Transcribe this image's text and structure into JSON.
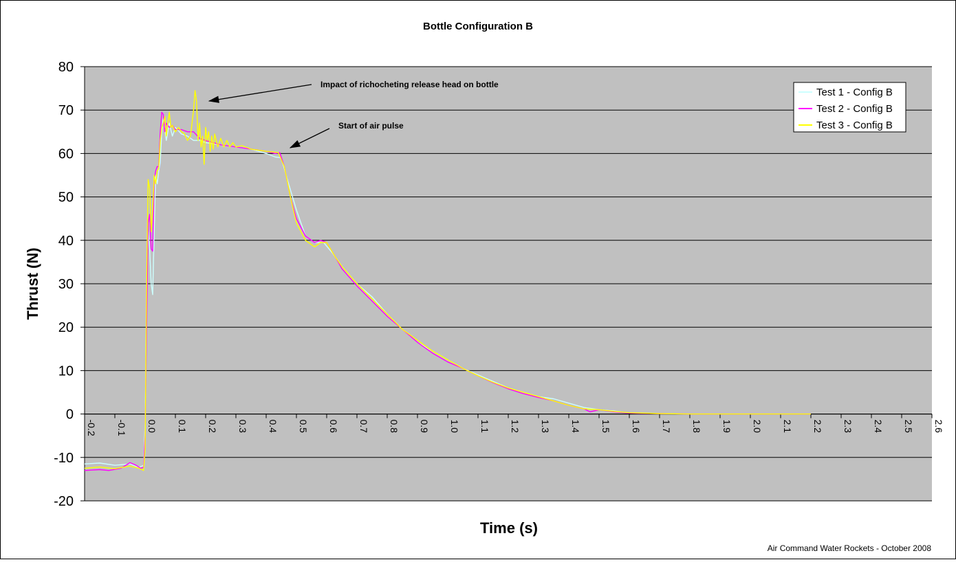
{
  "chart_data": {
    "type": "line",
    "title": "Bottle Configuration B",
    "xlabel": "Time (s)",
    "ylabel": "Thrust (N)",
    "footer": "Air Command Water Rockets - October 2008",
    "xlim": [
      -0.2,
      2.6
    ],
    "ylim": [
      -20,
      80
    ],
    "x_ticks": [
      "-0.2",
      "-0.1",
      "0.0",
      "0.1",
      "0.2",
      "0.3",
      "0.4",
      "0.5",
      "0.6",
      "0.7",
      "0.8",
      "0.9",
      "1.0",
      "1.1",
      "1.2",
      "1.3",
      "1.4",
      "1.5",
      "1.6",
      "1.7",
      "1.8",
      "1.9",
      "2.0",
      "2.1",
      "2.2",
      "2.3",
      "2.4",
      "2.5",
      "2.6"
    ],
    "y_ticks": [
      "80",
      "70",
      "60",
      "50",
      "40",
      "30",
      "20",
      "10",
      "0",
      "-10",
      "-20"
    ],
    "grid": true,
    "legend_position": "top-right",
    "plot_background": "#C0C0C0",
    "annotations": [
      {
        "text": "Impact of richocheting release head on bottle",
        "points_to": [
          0.21,
          72
        ]
      },
      {
        "text": "Start of air pulse",
        "points_to": [
          0.47,
          61
        ]
      }
    ],
    "series": [
      {
        "name": "Test 1 - Config B",
        "color": "#CCFFFF",
        "points": [
          [
            -0.2,
            -11.5
          ],
          [
            -0.15,
            -11.3
          ],
          [
            -0.1,
            -11.8
          ],
          [
            -0.05,
            -11.5
          ],
          [
            -0.02,
            -12.3
          ],
          [
            -0.005,
            -11.8
          ],
          [
            0.0,
            -2
          ],
          [
            0.005,
            25
          ],
          [
            0.01,
            42
          ],
          [
            0.015,
            38
          ],
          [
            0.02,
            30
          ],
          [
            0.025,
            27.5
          ],
          [
            0.03,
            42
          ],
          [
            0.035,
            55
          ],
          [
            0.04,
            53
          ],
          [
            0.045,
            56
          ],
          [
            0.05,
            58
          ],
          [
            0.055,
            65
          ],
          [
            0.06,
            68
          ],
          [
            0.065,
            66
          ],
          [
            0.07,
            63
          ],
          [
            0.08,
            67
          ],
          [
            0.09,
            64
          ],
          [
            0.1,
            66
          ],
          [
            0.12,
            64.5
          ],
          [
            0.14,
            64
          ],
          [
            0.16,
            63
          ],
          [
            0.18,
            63
          ],
          [
            0.2,
            62.5
          ],
          [
            0.25,
            62
          ],
          [
            0.3,
            61.5
          ],
          [
            0.35,
            61
          ],
          [
            0.4,
            60
          ],
          [
            0.43,
            59.2
          ],
          [
            0.45,
            59
          ],
          [
            0.47,
            54
          ],
          [
            0.5,
            47
          ],
          [
            0.53,
            41
          ],
          [
            0.56,
            39.5
          ],
          [
            0.59,
            39.5
          ],
          [
            0.62,
            37
          ],
          [
            0.65,
            34
          ],
          [
            0.7,
            30
          ],
          [
            0.75,
            27
          ],
          [
            0.8,
            23
          ],
          [
            0.85,
            19.5
          ],
          [
            0.9,
            16.5
          ],
          [
            0.95,
            14.5
          ],
          [
            1.0,
            12.5
          ],
          [
            1.05,
            10.5
          ],
          [
            1.1,
            9
          ],
          [
            1.15,
            7.5
          ],
          [
            1.2,
            6
          ],
          [
            1.25,
            5
          ],
          [
            1.3,
            4
          ],
          [
            1.35,
            3.5
          ],
          [
            1.4,
            2.5
          ],
          [
            1.45,
            1.5
          ],
          [
            1.5,
            1
          ],
          [
            1.55,
            0.7
          ],
          [
            1.6,
            0.2
          ],
          [
            1.7,
            0.1
          ],
          [
            1.8,
            0
          ],
          [
            1.9,
            0
          ],
          [
            2.0,
            0
          ],
          [
            2.1,
            0
          ],
          [
            2.2,
            0
          ]
        ]
      },
      {
        "name": "Test 2 - Config B",
        "color": "#FF00FF",
        "points": [
          [
            -0.2,
            -13
          ],
          [
            -0.15,
            -12.8
          ],
          [
            -0.12,
            -13
          ],
          [
            -0.08,
            -12.5
          ],
          [
            -0.05,
            -11.2
          ],
          [
            -0.03,
            -11.8
          ],
          [
            -0.015,
            -12.5
          ],
          [
            -0.005,
            -12.3
          ],
          [
            0.0,
            -5
          ],
          [
            0.005,
            20
          ],
          [
            0.01,
            44
          ],
          [
            0.015,
            46
          ],
          [
            0.02,
            38
          ],
          [
            0.025,
            37.5
          ],
          [
            0.03,
            54
          ],
          [
            0.035,
            56
          ],
          [
            0.04,
            57
          ],
          [
            0.045,
            57
          ],
          [
            0.05,
            65
          ],
          [
            0.055,
            69.5
          ],
          [
            0.06,
            69
          ],
          [
            0.065,
            65
          ],
          [
            0.07,
            67
          ],
          [
            0.08,
            66
          ],
          [
            0.09,
            66.5
          ],
          [
            0.1,
            65.5
          ],
          [
            0.12,
            65.5
          ],
          [
            0.14,
            65
          ],
          [
            0.16,
            65
          ],
          [
            0.18,
            63.5
          ],
          [
            0.2,
            63
          ],
          [
            0.25,
            62
          ],
          [
            0.3,
            61.5
          ],
          [
            0.35,
            61
          ],
          [
            0.4,
            60.5
          ],
          [
            0.43,
            60
          ],
          [
            0.445,
            60.2
          ],
          [
            0.46,
            57
          ],
          [
            0.48,
            50
          ],
          [
            0.5,
            45
          ],
          [
            0.53,
            41
          ],
          [
            0.56,
            39.5
          ],
          [
            0.58,
            40
          ],
          [
            0.6,
            39.5
          ],
          [
            0.63,
            36
          ],
          [
            0.65,
            33.5
          ],
          [
            0.7,
            29.5
          ],
          [
            0.75,
            26
          ],
          [
            0.8,
            22.5
          ],
          [
            0.85,
            19.5
          ],
          [
            0.9,
            16.5
          ],
          [
            0.95,
            14
          ],
          [
            1.0,
            12
          ],
          [
            1.05,
            10.5
          ],
          [
            1.1,
            8.8
          ],
          [
            1.15,
            7.2
          ],
          [
            1.2,
            5.8
          ],
          [
            1.25,
            4.7
          ],
          [
            1.3,
            3.8
          ],
          [
            1.35,
            3
          ],
          [
            1.4,
            2
          ],
          [
            1.45,
            1.2
          ],
          [
            1.47,
            0.5
          ],
          [
            1.5,
            1
          ],
          [
            1.55,
            0.5
          ],
          [
            1.6,
            0.2
          ],
          [
            1.7,
            0.1
          ],
          [
            1.8,
            0
          ],
          [
            1.9,
            0
          ],
          [
            2.0,
            0
          ],
          [
            2.1,
            0
          ],
          [
            2.2,
            0
          ]
        ]
      },
      {
        "name": "Test 3 - Config B",
        "color": "#FFFF00",
        "points": [
          [
            -0.2,
            -12.5
          ],
          [
            -0.15,
            -12.2
          ],
          [
            -0.1,
            -12.6
          ],
          [
            -0.05,
            -12
          ],
          [
            -0.02,
            -12.5
          ],
          [
            -0.005,
            -13
          ],
          [
            0.0,
            -8
          ],
          [
            0.005,
            30
          ],
          [
            0.01,
            54
          ],
          [
            0.015,
            52
          ],
          [
            0.02,
            42
          ],
          [
            0.025,
            47
          ],
          [
            0.03,
            55
          ],
          [
            0.035,
            53
          ],
          [
            0.04,
            56
          ],
          [
            0.045,
            56.5
          ],
          [
            0.05,
            63
          ],
          [
            0.055,
            66
          ],
          [
            0.06,
            67
          ],
          [
            0.065,
            68.5
          ],
          [
            0.07,
            64
          ],
          [
            0.075,
            67
          ],
          [
            0.08,
            69.5
          ],
          [
            0.085,
            66
          ],
          [
            0.09,
            66.5
          ],
          [
            0.1,
            65
          ],
          [
            0.11,
            66
          ],
          [
            0.12,
            65
          ],
          [
            0.13,
            64.5
          ],
          [
            0.14,
            63
          ],
          [
            0.15,
            64
          ],
          [
            0.16,
            70
          ],
          [
            0.165,
            74.5
          ],
          [
            0.17,
            72
          ],
          [
            0.175,
            63
          ],
          [
            0.18,
            67
          ],
          [
            0.185,
            61.5
          ],
          [
            0.19,
            64
          ],
          [
            0.195,
            57.5
          ],
          [
            0.2,
            66
          ],
          [
            0.205,
            63
          ],
          [
            0.21,
            65
          ],
          [
            0.215,
            60.5
          ],
          [
            0.22,
            64
          ],
          [
            0.225,
            61
          ],
          [
            0.23,
            64.5
          ],
          [
            0.24,
            61.5
          ],
          [
            0.25,
            63.5
          ],
          [
            0.26,
            61.5
          ],
          [
            0.27,
            63
          ],
          [
            0.28,
            61.5
          ],
          [
            0.29,
            62.5
          ],
          [
            0.3,
            61.5
          ],
          [
            0.32,
            61.8
          ],
          [
            0.35,
            61
          ],
          [
            0.4,
            60.5
          ],
          [
            0.44,
            60.2
          ],
          [
            0.46,
            57
          ],
          [
            0.48,
            50
          ],
          [
            0.5,
            44
          ],
          [
            0.53,
            40
          ],
          [
            0.56,
            38.5
          ],
          [
            0.58,
            39.5
          ],
          [
            0.6,
            39.5
          ],
          [
            0.63,
            36
          ],
          [
            0.65,
            34
          ],
          [
            0.7,
            30
          ],
          [
            0.75,
            26.5
          ],
          [
            0.8,
            23
          ],
          [
            0.85,
            19.5
          ],
          [
            0.9,
            17
          ],
          [
            0.95,
            14.5
          ],
          [
            1.0,
            12.5
          ],
          [
            1.05,
            10.5
          ],
          [
            1.1,
            8.8
          ],
          [
            1.15,
            7.3
          ],
          [
            1.2,
            6
          ],
          [
            1.25,
            5
          ],
          [
            1.3,
            4
          ],
          [
            1.35,
            3
          ],
          [
            1.4,
            2
          ],
          [
            1.45,
            1.2
          ],
          [
            1.5,
            1
          ],
          [
            1.55,
            0.6
          ],
          [
            1.6,
            0.3
          ],
          [
            1.7,
            0.1
          ],
          [
            1.8,
            0
          ],
          [
            1.9,
            0
          ],
          [
            2.0,
            0
          ],
          [
            2.1,
            0
          ],
          [
            2.2,
            0
          ]
        ]
      }
    ]
  }
}
